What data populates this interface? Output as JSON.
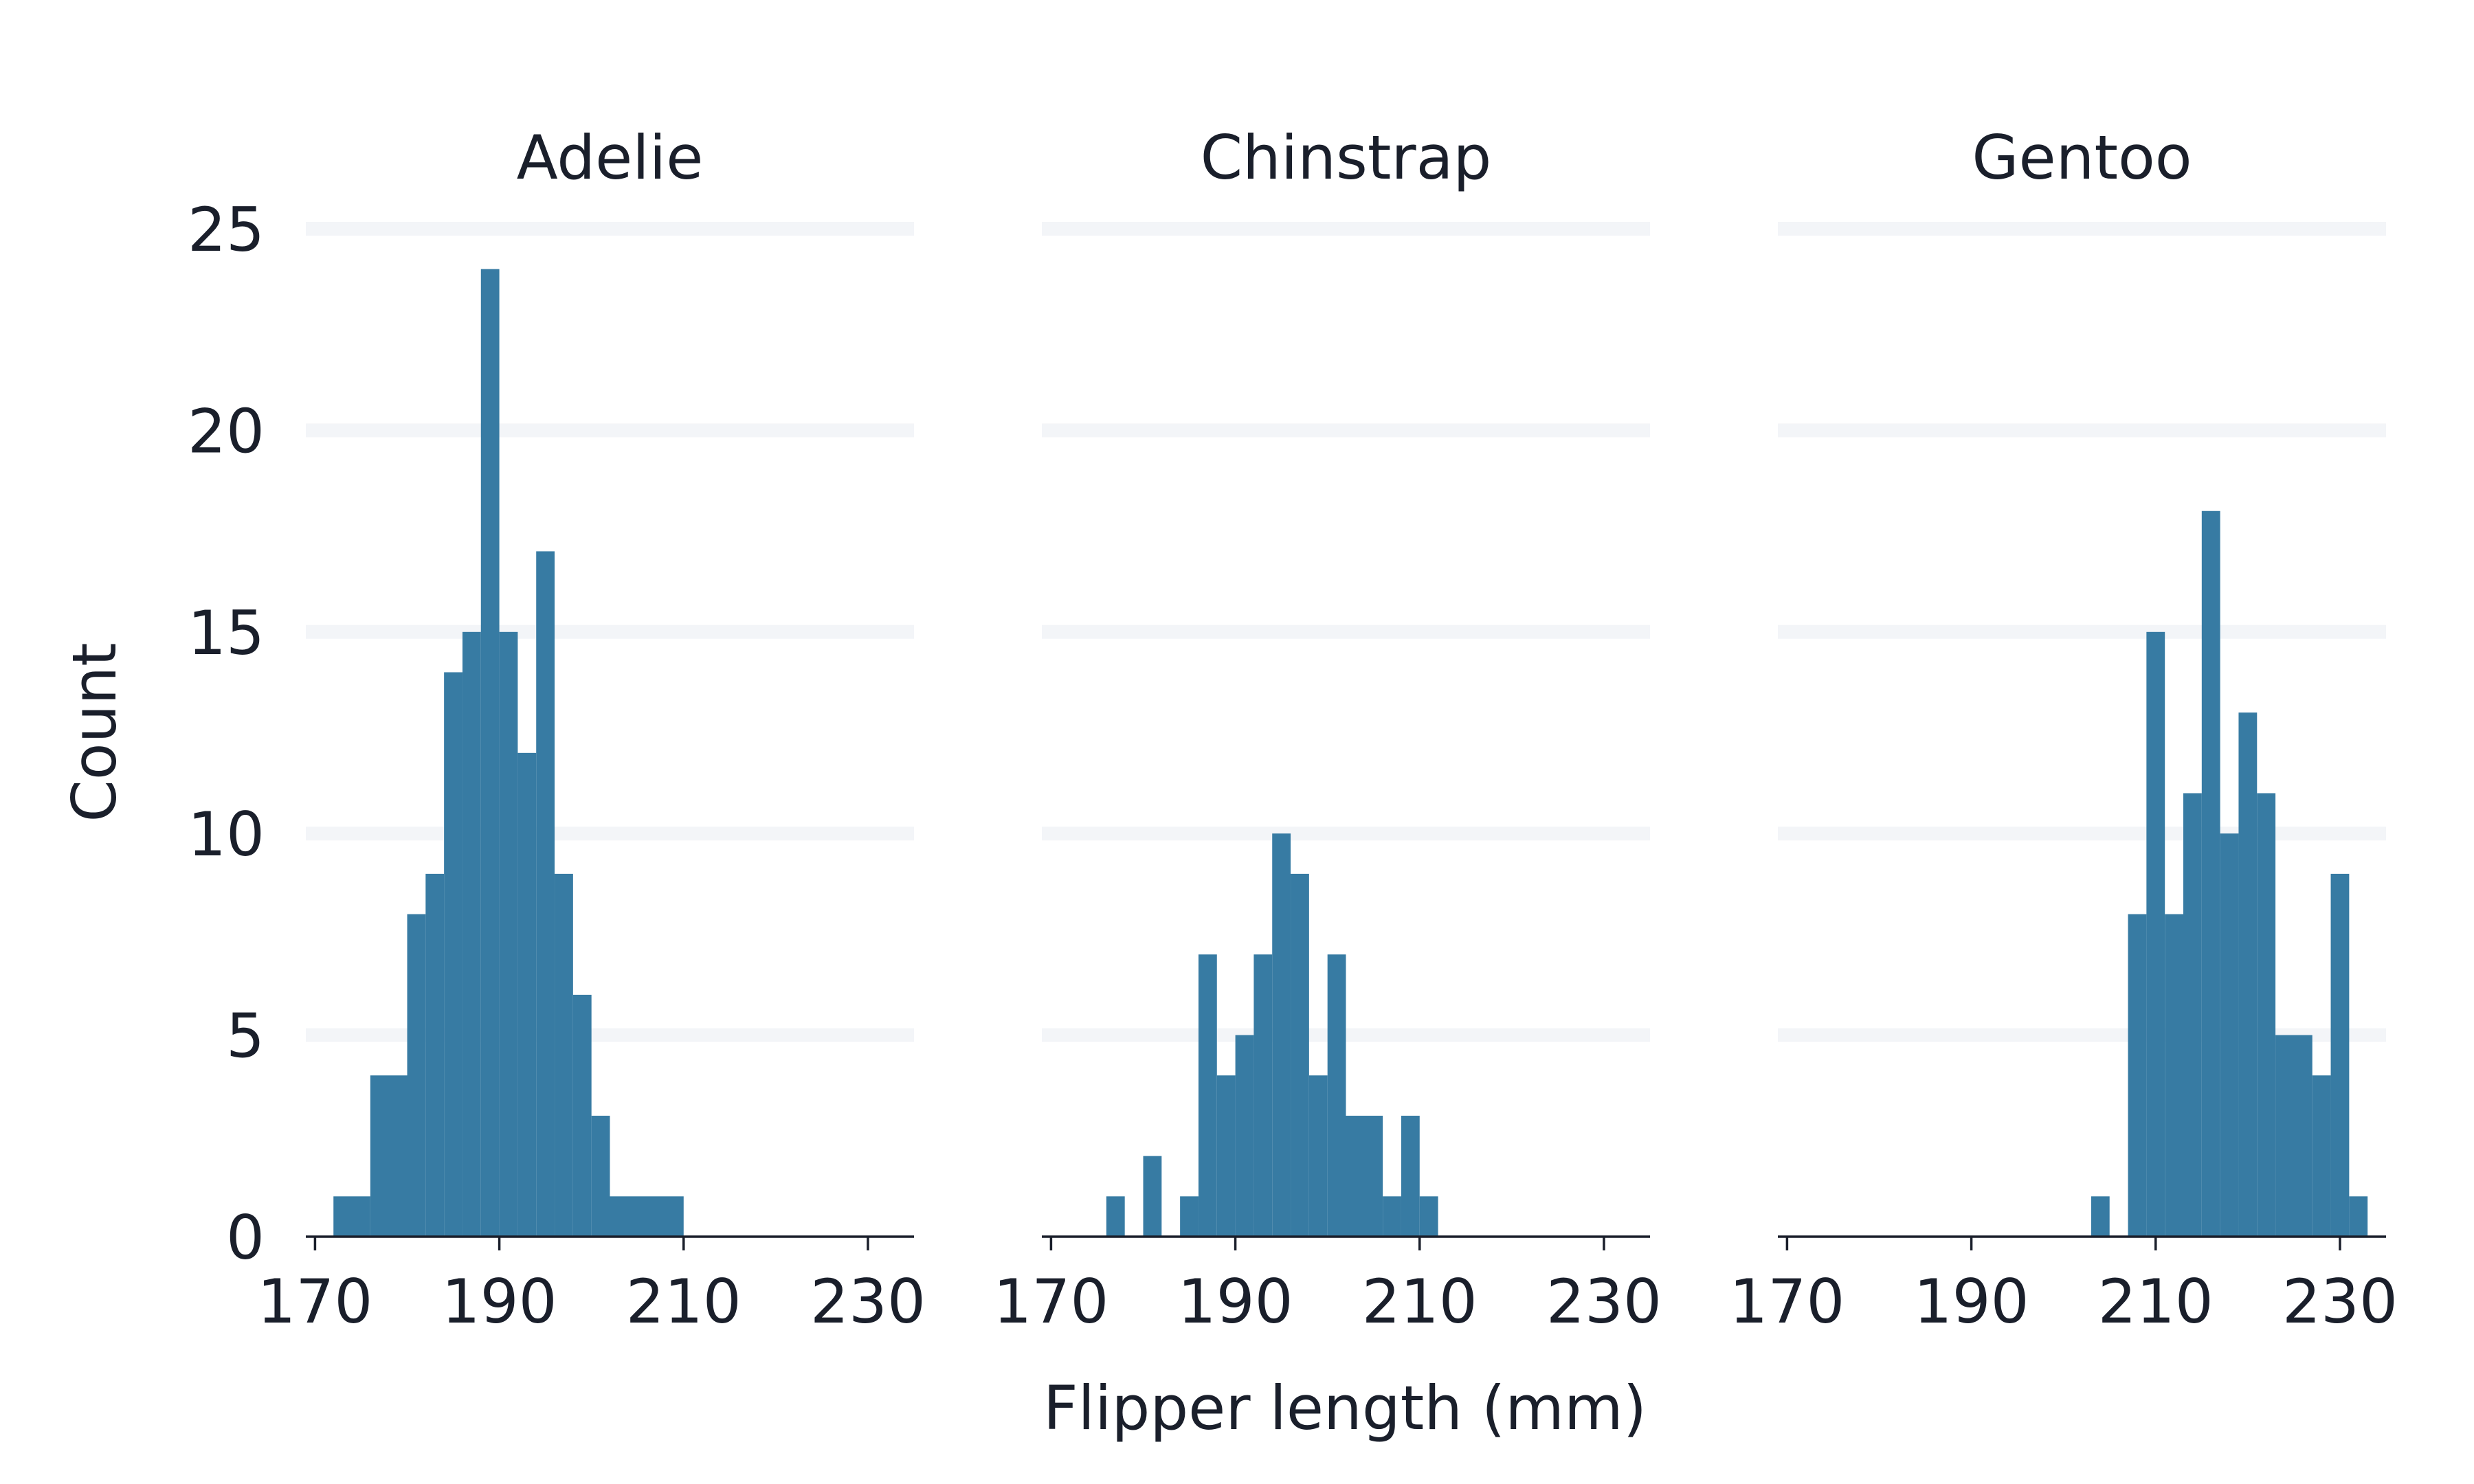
{
  "chart_data": {
    "type": "histogram",
    "layout": "facet-columns",
    "xlabel": "Flipper length (mm)",
    "ylabel": "Count",
    "ylim": [
      0,
      25
    ],
    "yticks": [
      0,
      5,
      10,
      15,
      20,
      25
    ],
    "xlim": [
      169,
      235
    ],
    "xticks": [
      170,
      190,
      210,
      230
    ],
    "grid": "horizontal",
    "bin_width": 2,
    "bars_color": "#377ba3",
    "panels": [
      {
        "title": "Adelie",
        "bins": [
          {
            "x0": 172,
            "x1": 176,
            "count": 1
          },
          {
            "x0": 176,
            "x1": 180,
            "count": 4
          },
          {
            "x0": 180,
            "x1": 182,
            "count": 8
          },
          {
            "x0": 182,
            "x1": 184,
            "count": 9
          },
          {
            "x0": 184,
            "x1": 186,
            "count": 14
          },
          {
            "x0": 186,
            "x1": 188,
            "count": 15
          },
          {
            "x0": 188,
            "x1": 190,
            "count": 24
          },
          {
            "x0": 190,
            "x1": 192,
            "count": 15
          },
          {
            "x0": 192,
            "x1": 194,
            "count": 12
          },
          {
            "x0": 194,
            "x1": 196,
            "count": 17
          },
          {
            "x0": 196,
            "x1": 198,
            "count": 9
          },
          {
            "x0": 198,
            "x1": 200,
            "count": 6
          },
          {
            "x0": 200,
            "x1": 202,
            "count": 3
          },
          {
            "x0": 202,
            "x1": 210,
            "count": 1
          }
        ]
      },
      {
        "title": "Chinstrap",
        "bins": [
          {
            "x0": 176,
            "x1": 178,
            "count": 1
          },
          {
            "x0": 180,
            "x1": 182,
            "count": 2
          },
          {
            "x0": 184,
            "x1": 186,
            "count": 1
          },
          {
            "x0": 186,
            "x1": 188,
            "count": 7
          },
          {
            "x0": 188,
            "x1": 190,
            "count": 4
          },
          {
            "x0": 190,
            "x1": 192,
            "count": 5
          },
          {
            "x0": 192,
            "x1": 194,
            "count": 7
          },
          {
            "x0": 194,
            "x1": 196,
            "count": 10
          },
          {
            "x0": 196,
            "x1": 198,
            "count": 9
          },
          {
            "x0": 198,
            "x1": 200,
            "count": 4
          },
          {
            "x0": 200,
            "x1": 202,
            "count": 7
          },
          {
            "x0": 202,
            "x1": 206,
            "count": 3
          },
          {
            "x0": 206,
            "x1": 208,
            "count": 1
          },
          {
            "x0": 208,
            "x1": 210,
            "count": 3
          },
          {
            "x0": 210,
            "x1": 212,
            "count": 1
          }
        ]
      },
      {
        "title": "Gentoo",
        "bins": [
          {
            "x0": 203,
            "x1": 205,
            "count": 1
          },
          {
            "x0": 207,
            "x1": 209,
            "count": 8
          },
          {
            "x0": 209,
            "x1": 211,
            "count": 15
          },
          {
            "x0": 211,
            "x1": 213,
            "count": 8
          },
          {
            "x0": 213,
            "x1": 215,
            "count": 11
          },
          {
            "x0": 215,
            "x1": 217,
            "count": 18
          },
          {
            "x0": 217,
            "x1": 219,
            "count": 10
          },
          {
            "x0": 219,
            "x1": 221,
            "count": 13
          },
          {
            "x0": 221,
            "x1": 223,
            "count": 11
          },
          {
            "x0": 223,
            "x1": 227,
            "count": 5
          },
          {
            "x0": 227,
            "x1": 229,
            "count": 4
          },
          {
            "x0": 229,
            "x1": 231,
            "count": 9
          },
          {
            "x0": 231,
            "x1": 233,
            "count": 1
          }
        ]
      }
    ]
  }
}
